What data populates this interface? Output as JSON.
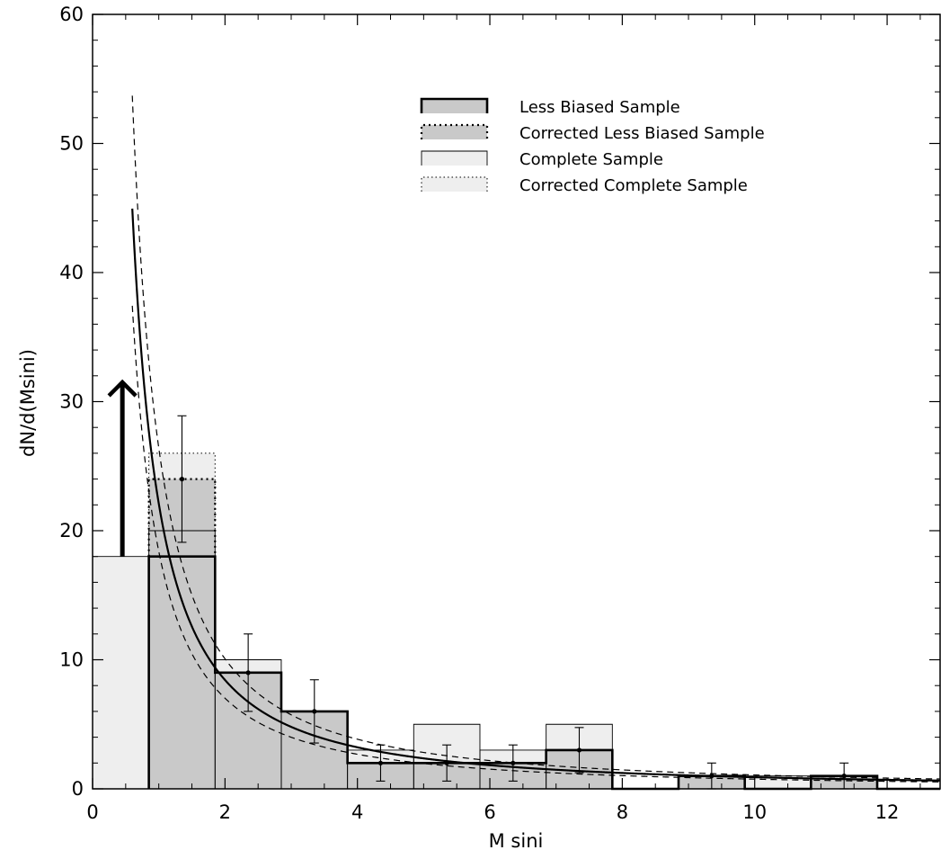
{
  "chart_data": {
    "type": "bar",
    "xlabel": "M sini",
    "ylabel": "dN/d(Msini)",
    "xlim": [
      0,
      12.8
    ],
    "ylim": [
      0,
      60
    ],
    "xticks": [
      0,
      2,
      4,
      6,
      8,
      10,
      12
    ],
    "yticks": [
      0,
      10,
      20,
      30,
      40,
      50,
      60
    ],
    "bin_edges": [
      0.0,
      0.85,
      1.85,
      2.85,
      3.85,
      4.85,
      5.85,
      6.85,
      7.85,
      8.85,
      9.85,
      10.85,
      11.85,
      12.85
    ],
    "series": [
      {
        "name": "Less Biased Sample",
        "values": [
          null,
          18,
          9,
          6,
          2,
          2,
          2,
          3,
          0,
          1,
          0,
          1,
          0
        ]
      },
      {
        "name": "Corrected Less Biased Sample",
        "values": [
          null,
          24,
          null,
          null,
          null,
          null,
          null,
          null,
          null,
          null,
          null,
          null,
          null
        ]
      },
      {
        "name": "Complete Sample",
        "values": [
          18,
          20,
          10,
          6,
          3,
          5,
          3,
          5,
          0,
          1,
          1,
          1,
          0
        ]
      },
      {
        "name": "Corrected Complete Sample",
        "values": [
          null,
          26,
          null,
          null,
          null,
          null,
          null,
          null,
          null,
          null,
          null,
          null,
          null
        ]
      }
    ],
    "error_bars": [
      {
        "x": 1.35,
        "y": 24,
        "low": 19.1,
        "high": 28.9
      },
      {
        "x": 2.35,
        "y": 9,
        "low": 6.0,
        "high": 12.0
      },
      {
        "x": 3.35,
        "y": 6,
        "low": 3.55,
        "high": 8.45
      },
      {
        "x": 4.35,
        "y": 2,
        "low": 0.6,
        "high": 3.4
      },
      {
        "x": 5.35,
        "y": 2,
        "low": 0.6,
        "high": 3.4
      },
      {
        "x": 6.35,
        "y": 2,
        "low": 0.6,
        "high": 3.4
      },
      {
        "x": 7.35,
        "y": 3,
        "low": 1.25,
        "high": 4.75
      },
      {
        "x": 9.35,
        "y": 1,
        "low": 0.0,
        "high": 2.0
      },
      {
        "x": 11.35,
        "y": 1,
        "low": 0.0,
        "high": 2.0
      }
    ],
    "fit_curve": {
      "form": "power-law",
      "amplitude": 22.1,
      "index": -1.39,
      "upper_amplitude": 26.4,
      "lower_amplitude": 18.4,
      "x_range": [
        0.6,
        12.8
      ]
    },
    "arrow": {
      "x": 0.45,
      "y_from": 18,
      "y_to": 31.5
    },
    "legend": {
      "placement": "top-right",
      "entries": [
        "Less Biased Sample",
        "Corrected Less Biased Sample",
        "Complete Sample",
        "Corrected Complete Sample"
      ]
    },
    "colors": {
      "less_biased_fill": "#c9c9c9",
      "complete_fill": "#eeeeee",
      "line": "#000000"
    }
  }
}
